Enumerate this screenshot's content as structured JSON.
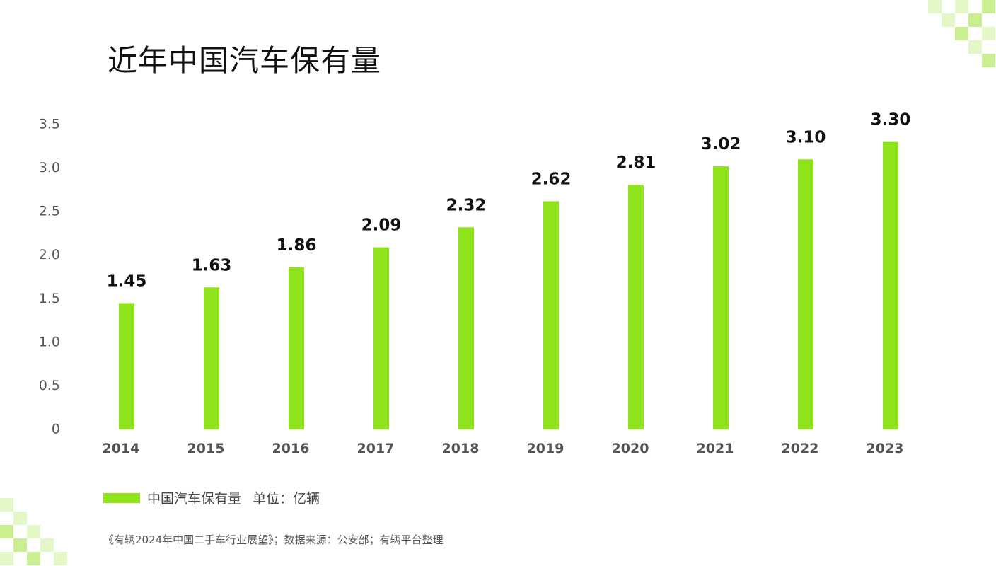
{
  "title": "近年中国汽车保有量",
  "legend": {
    "series_label": "中国汽车保有量",
    "unit_label": "单位：亿辆"
  },
  "source": "《有辆2024年中国二手车行业展望》；数据来源：公安部；有辆平台整理",
  "colors": {
    "bar": "#8ee31a",
    "deco_light": "#e4f7c6",
    "deco_mid": "#c9ef90"
  },
  "chart_data": {
    "type": "bar",
    "categories": [
      "2014",
      "2015",
      "2016",
      "2017",
      "2018",
      "2019",
      "2020",
      "2021",
      "2022",
      "2023"
    ],
    "series": [
      {
        "name": "中国汽车保有量",
        "values": [
          1.45,
          1.63,
          1.86,
          2.09,
          2.32,
          2.62,
          2.81,
          3.02,
          3.1,
          3.3
        ],
        "labels": [
          "1.45",
          "1.63",
          "1.86",
          "2.09",
          "2.32",
          "2.62",
          "2.81",
          "3.02",
          "3.10",
          "3.30"
        ]
      }
    ],
    "yticks": [
      "0",
      "0.5",
      "1.0",
      "1.5",
      "2.0",
      "2.5",
      "3.0",
      "3.5"
    ],
    "ylim": [
      0,
      3.5
    ],
    "grid": false,
    "legend_position": "bottom-left"
  }
}
